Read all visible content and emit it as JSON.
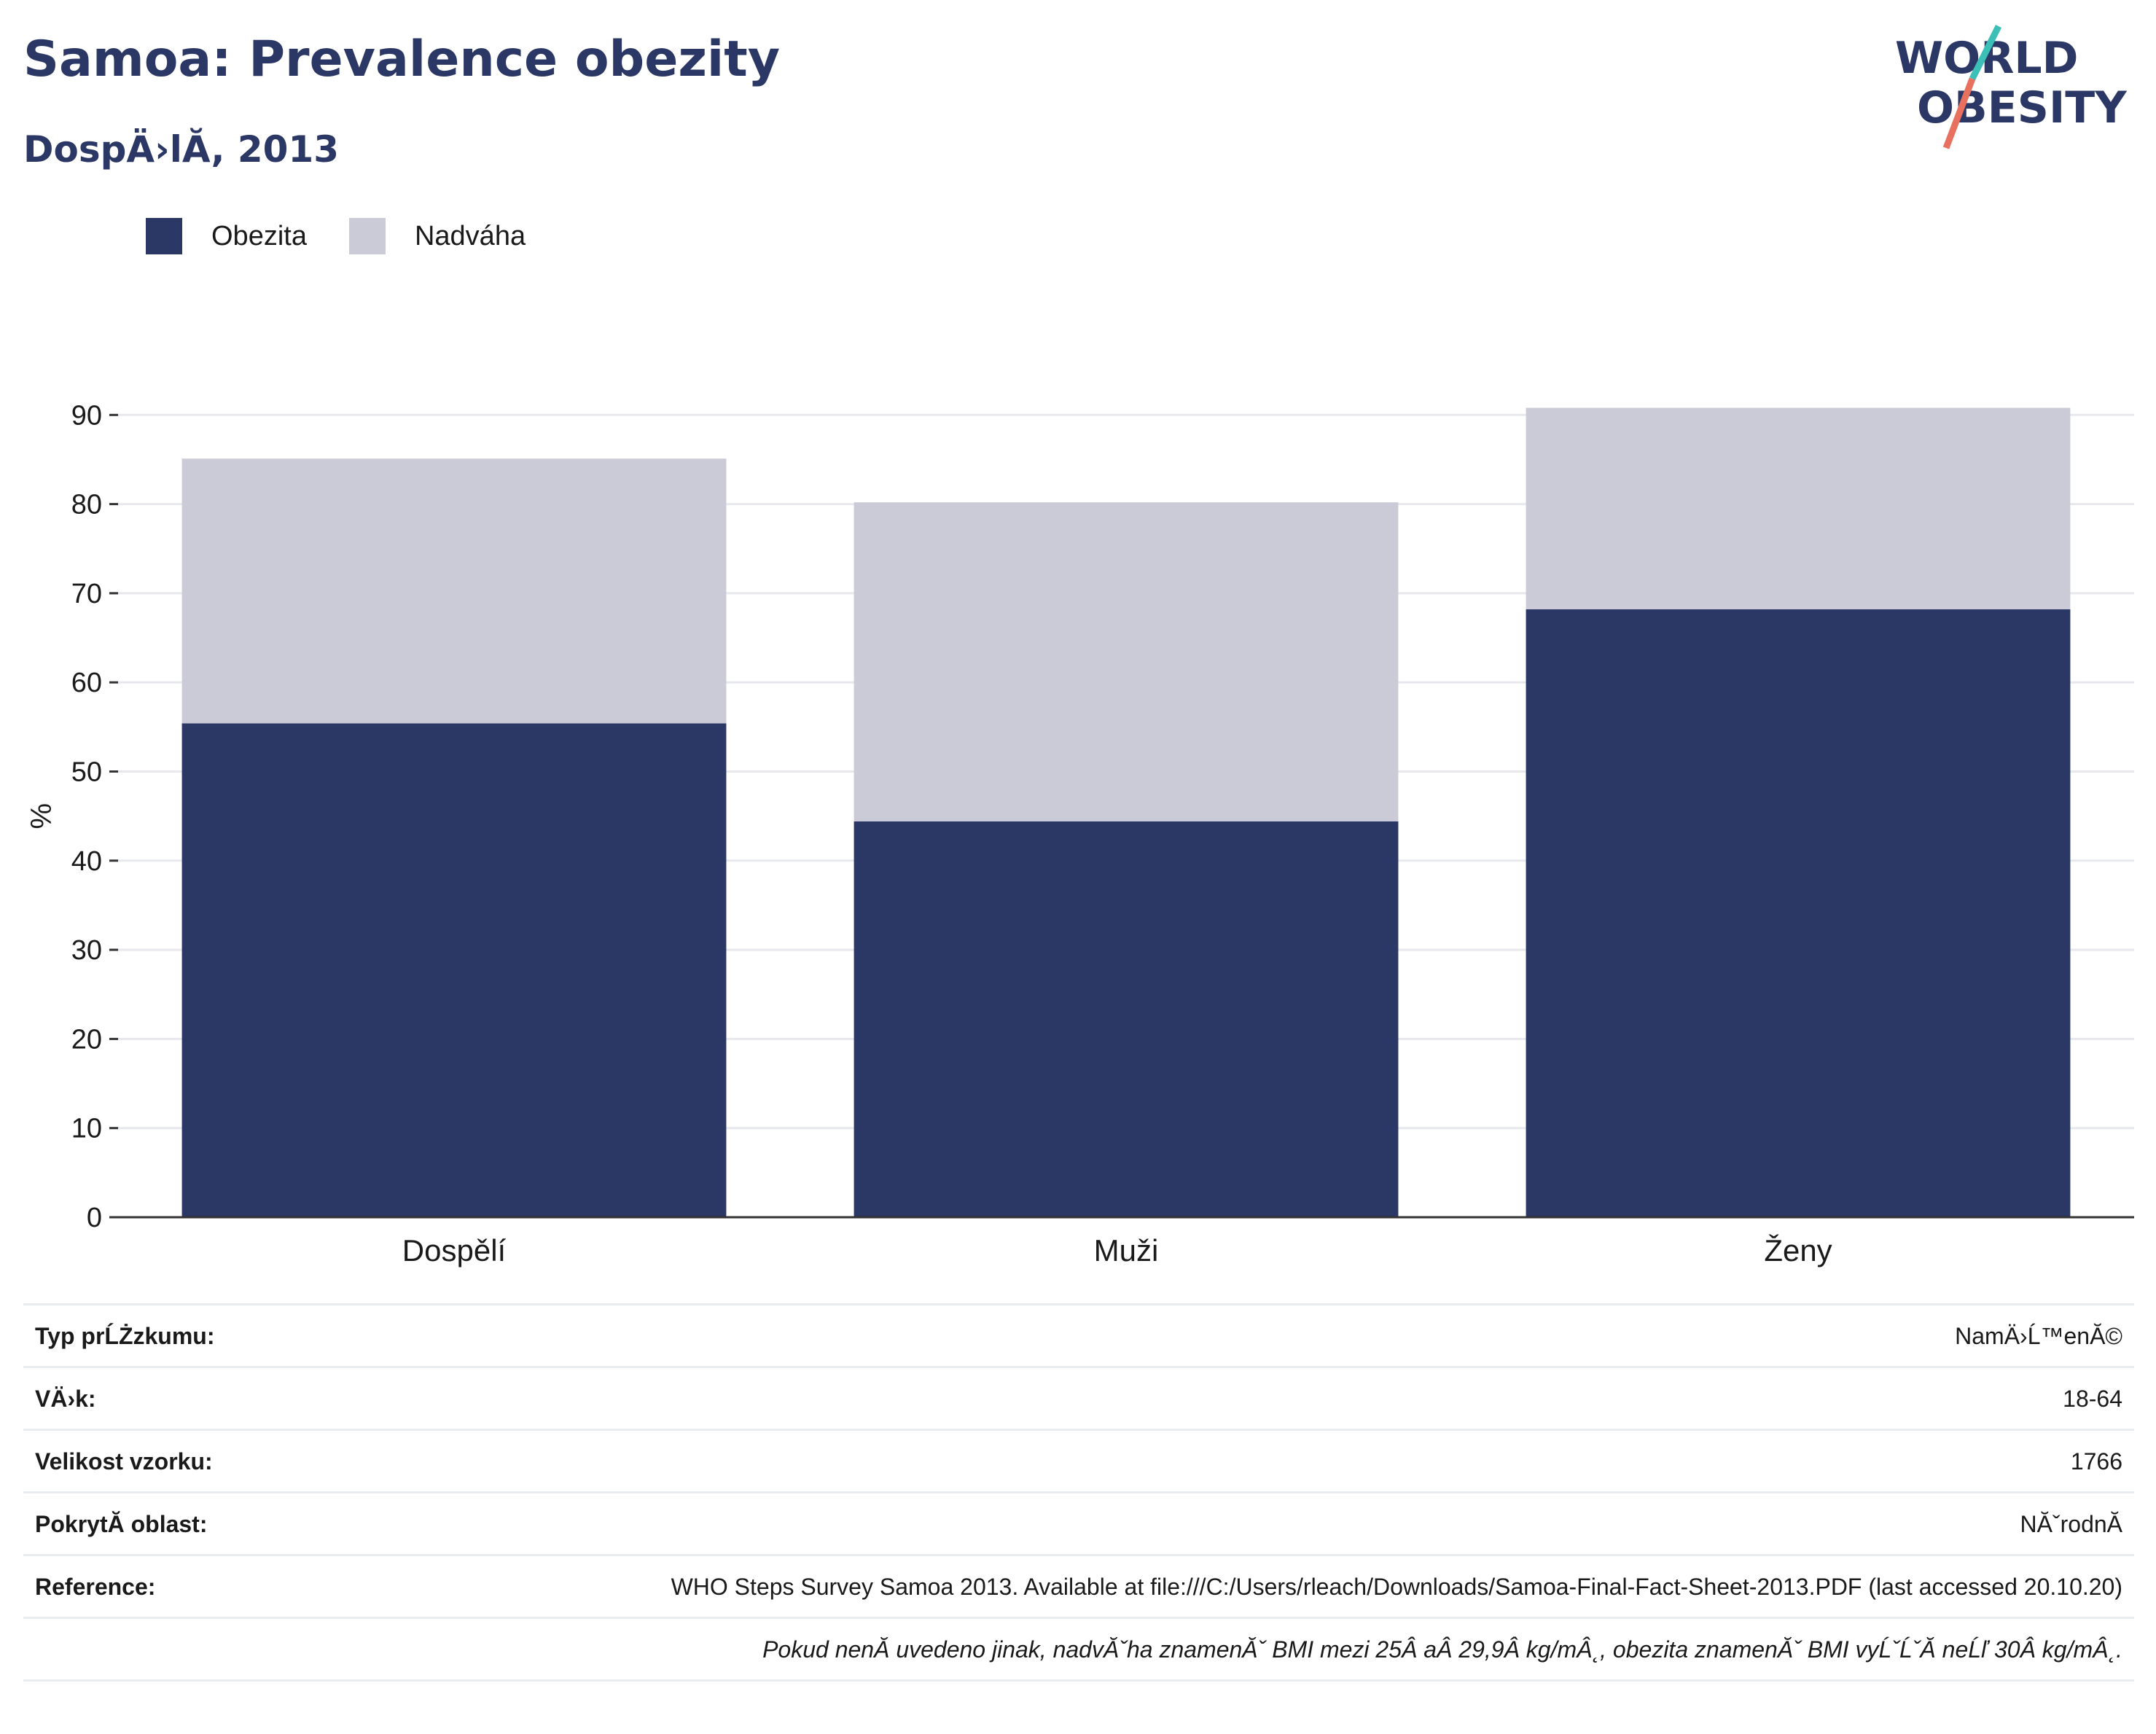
{
  "header": {
    "title": "Samoa: Prevalence obezity",
    "subtitle": "DospÄ›lĂ, 2013"
  },
  "logo": {
    "line1": "WORLD",
    "line2": "OBESITY",
    "icon": "world-obesity-slash-logo"
  },
  "colors": {
    "obezita": "#2b3764",
    "nadvaha": "#cacbd7",
    "grid": "#e6e8ee",
    "axis": "#333333"
  },
  "chart_data": {
    "type": "bar",
    "stacked": true,
    "categories": [
      "Dospělí",
      "Muži",
      "Ženy"
    ],
    "series": [
      {
        "name": "Obezita",
        "values": [
          55.4,
          44.4,
          68.2
        ]
      },
      {
        "name": "Nadváha",
        "values": [
          29.7,
          35.8,
          22.6
        ]
      }
    ],
    "totals": [
      85.1,
      80.2,
      90.8
    ],
    "ylabel": "%",
    "ylim": [
      0,
      90
    ],
    "yticks": [
      0,
      10,
      20,
      30,
      40,
      50,
      60,
      70,
      80,
      90
    ],
    "grid": true,
    "legend": "top-left"
  },
  "meta": {
    "rows": [
      {
        "key": "Typ prĹŻzkumu:",
        "value": "NamÄ›Ĺ™enĂ©"
      },
      {
        "key": "VÄ›k:",
        "value": "18-64"
      },
      {
        "key": "Velikost vzorku:",
        "value": "1766"
      },
      {
        "key": "PokrytĂ­ oblast:",
        "value": "NĂˇrodnĂ­"
      },
      {
        "key": "Reference:",
        "value": "WHO Steps Survey Samoa 2013. Available at file:///C:/Users/rleach/Downloads/Samoa-Final-Fact-Sheet-2013.PDF (last accessed 20.10.20)"
      }
    ],
    "note": "Pokud nenĂ­ uvedeno jinak, nadvĂˇha znamenĂˇ BMI mezi 25Â aÂ 29,9Â kg/mÂ˛, obezita znamenĂˇ BMI vyĹˇĹˇĂ­ neĹľ 30Â kg/mÂ˛."
  }
}
